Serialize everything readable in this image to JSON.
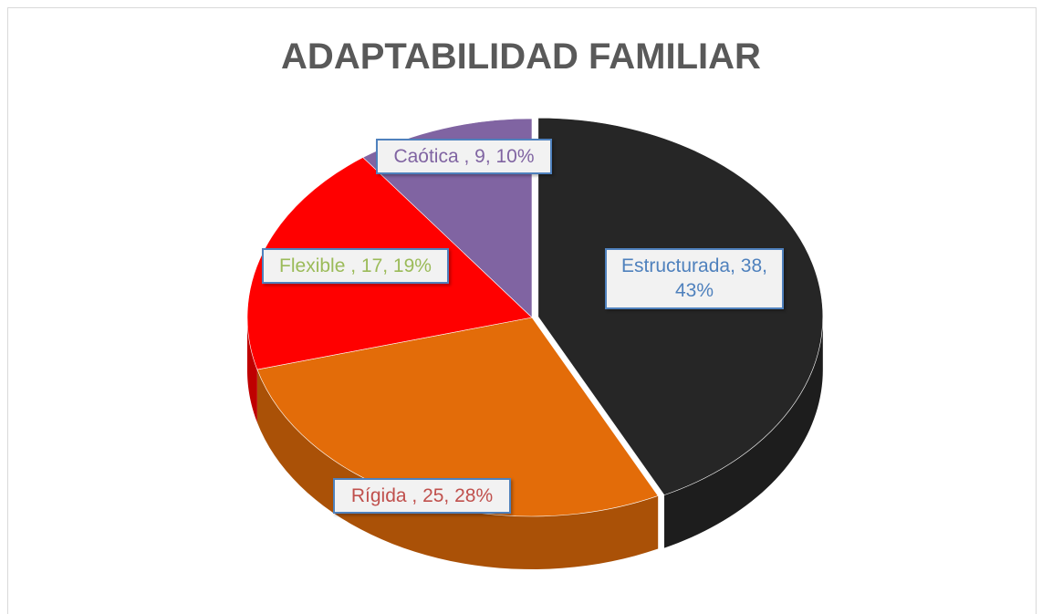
{
  "chart_data": {
    "type": "pie3d",
    "title": "ADAPTABILIDAD FAMILIAR",
    "values": [
      38,
      25,
      17,
      9
    ],
    "value_labels": [
      "Estructurada, 38, 43%",
      "Rígida , 25, 28%",
      "Flexible , 17, 19%",
      "Caótica , 9, 10%"
    ],
    "colors": [
      "#262626",
      "#e36c09",
      "#ff0000",
      "#8064a2"
    ],
    "label_colors": [
      "#4f81bd",
      "#c0504d",
      "#9bbb59",
      "#8064a2"
    ]
  }
}
